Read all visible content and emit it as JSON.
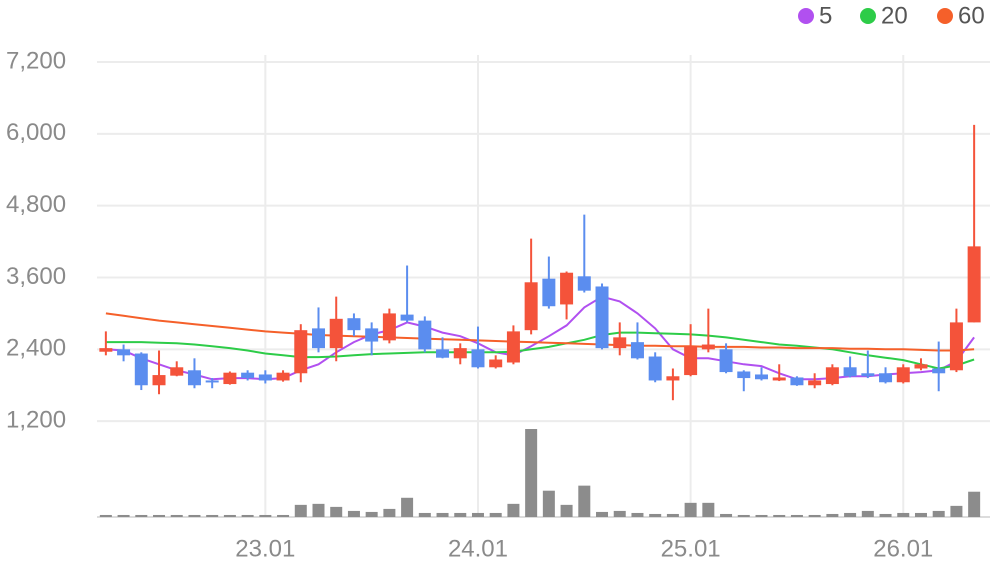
{
  "chart_data": {
    "type": "candlestick",
    "categories": [
      null,
      null,
      null,
      null,
      null,
      null,
      null,
      null,
      null,
      "23.01",
      null,
      null,
      null,
      null,
      null,
      null,
      null,
      null,
      null,
      null,
      null,
      "24.01",
      null,
      null,
      null,
      null,
      null,
      null,
      null,
      null,
      null,
      null,
      null,
      "25.01",
      null,
      null,
      null,
      null,
      null,
      null,
      null,
      null,
      null,
      null,
      null,
      "26.01",
      null,
      null,
      null,
      null
    ],
    "open": [
      2360,
      2400,
      2330,
      1800,
      1960,
      2050,
      1880,
      1820,
      2010,
      1980,
      1880,
      2000,
      2750,
      2420,
      2920,
      2750,
      2550,
      2980,
      2880,
      2400,
      2250,
      2400,
      2100,
      2180,
      2720,
      3580,
      3150,
      3620,
      3450,
      2420,
      2520,
      2280,
      1880,
      1970,
      2400,
      2400,
      2030,
      1980,
      1880,
      1930,
      1800,
      1820,
      2100,
      2000,
      2000,
      1850,
      2080,
      2080,
      2050,
      2850
    ],
    "high": [
      2700,
      2480,
      2350,
      2380,
      2200,
      2250,
      1920,
      2030,
      2050,
      2050,
      2050,
      2820,
      3100,
      3280,
      3000,
      2850,
      3080,
      3800,
      2950,
      2600,
      2500,
      2780,
      2300,
      2800,
      4250,
      3950,
      3700,
      4650,
      3500,
      2850,
      2850,
      2350,
      2080,
      2820,
      3080,
      2500,
      2050,
      2100,
      2150,
      1950,
      2000,
      2150,
      2280,
      2380,
      2100,
      2150,
      2250,
      2530,
      3080,
      6150
    ],
    "low": [
      2300,
      2200,
      1720,
      1650,
      1950,
      1750,
      1750,
      1810,
      1880,
      1830,
      1860,
      1850,
      2350,
      2200,
      2620,
      2300,
      2500,
      2850,
      2350,
      2250,
      2150,
      2080,
      2080,
      2150,
      2650,
      3080,
      2900,
      3350,
      2400,
      2300,
      2230,
      1850,
      1550,
      1950,
      2350,
      2000,
      1700,
      1880,
      1870,
      1790,
      1750,
      1800,
      1930,
      1920,
      1830,
      1830,
      2050,
      1700,
      2020,
      2850
    ],
    "close": [
      2420,
      2300,
      1800,
      1970,
      2100,
      1800,
      1850,
      2010,
      1920,
      1880,
      2010,
      2720,
      2420,
      2910,
      2720,
      2530,
      3000,
      2880,
      2400,
      2260,
      2420,
      2100,
      2230,
      2700,
      3520,
      3120,
      3680,
      3380,
      2420,
      2600,
      2250,
      1880,
      1950,
      2450,
      2480,
      2020,
      1920,
      1900,
      1930,
      1800,
      1880,
      2100,
      1950,
      1950,
      1850,
      2100,
      2150,
      2000,
      2850,
      4120
    ],
    "volume": [
      2,
      2,
      2,
      2,
      2,
      2,
      2,
      2,
      2,
      2,
      2,
      12,
      13,
      10,
      6,
      5,
      8,
      19,
      4,
      4,
      4,
      4,
      4,
      13,
      87,
      26,
      12,
      31,
      5,
      6,
      4,
      3,
      3,
      14,
      14,
      3,
      2,
      2,
      2,
      2,
      2,
      3,
      4,
      6,
      3,
      4,
      4,
      6,
      11,
      25
    ],
    "up_color": "#f4533a",
    "down_color": "#5b8def",
    "volume_color": "#8c8c8c",
    "series": [
      {
        "name": "5",
        "color": "#b150f0",
        "values": [
          2400,
          2380,
          2250,
          2150,
          2050,
          1980,
          1900,
          1920,
          1920,
          1900,
          1920,
          2050,
          2150,
          2350,
          2520,
          2650,
          2720,
          2850,
          2780,
          2680,
          2620,
          2500,
          2350,
          2300,
          2450,
          2620,
          2800,
          3100,
          3280,
          3200,
          3000,
          2750,
          2400,
          2250,
          2250,
          2200,
          2150,
          2120,
          2000,
          1900,
          1900,
          1920,
          1950,
          1950,
          1980,
          2000,
          2020,
          2050,
          2200,
          2600
        ]
      },
      {
        "name": "20",
        "color": "#2dcc48",
        "values": [
          2520,
          2520,
          2520,
          2510,
          2500,
          2480,
          2450,
          2420,
          2380,
          2330,
          2300,
          2270,
          2270,
          2280,
          2300,
          2320,
          2330,
          2340,
          2350,
          2350,
          2350,
          2350,
          2350,
          2360,
          2400,
          2440,
          2500,
          2560,
          2640,
          2680,
          2680,
          2670,
          2660,
          2650,
          2630,
          2600,
          2560,
          2520,
          2480,
          2460,
          2430,
          2400,
          2350,
          2300,
          2260,
          2220,
          2150,
          2080,
          2130,
          2230
        ]
      },
      {
        "name": "60",
        "color": "#f5602a",
        "values": [
          3000,
          2960,
          2920,
          2880,
          2850,
          2820,
          2790,
          2760,
          2730,
          2700,
          2680,
          2660,
          2640,
          2630,
          2620,
          2610,
          2600,
          2590,
          2580,
          2570,
          2560,
          2550,
          2540,
          2530,
          2520,
          2510,
          2500,
          2490,
          2480,
          2470,
          2460,
          2460,
          2450,
          2450,
          2440,
          2440,
          2440,
          2430,
          2430,
          2420,
          2420,
          2420,
          2410,
          2410,
          2400,
          2400,
          2390,
          2380,
          2380,
          2400
        ]
      }
    ],
    "ylim": [
      0,
      7200
    ],
    "yticks": [
      {
        "value": 1200,
        "label": "1,200"
      },
      {
        "value": 2400,
        "label": "2,400"
      },
      {
        "value": 3600,
        "label": "3,600"
      },
      {
        "value": 4800,
        "label": "4,800"
      },
      {
        "value": 6000,
        "label": "6,000"
      },
      {
        "value": 7200,
        "label": "7,200"
      }
    ],
    "grid": true
  }
}
